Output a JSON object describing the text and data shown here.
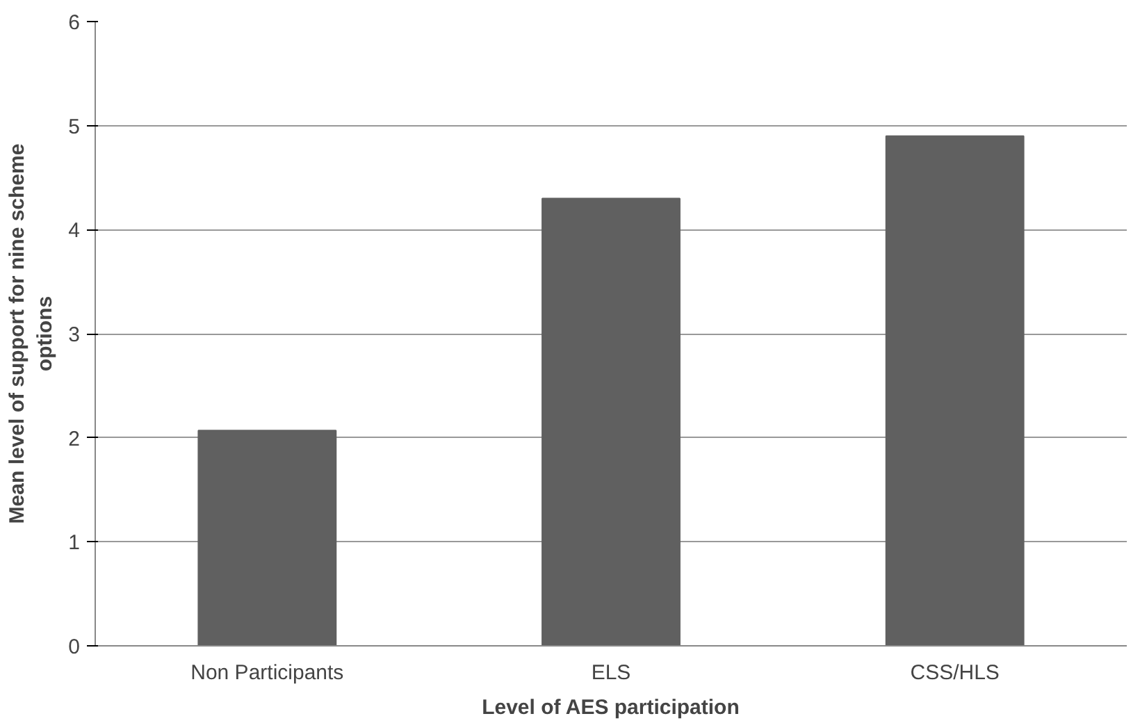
{
  "chart_data": {
    "type": "bar",
    "xlabel": "Level of AES participation",
    "ylabel": "Mean level of support for nine scheme options",
    "categories": [
      "Non Participants",
      "ELS",
      "CSS/HLS"
    ],
    "values": [
      2.07,
      4.3,
      4.9
    ],
    "color": "#606060",
    "ylim": [
      0,
      6
    ],
    "yticks": [
      0,
      1,
      2,
      3,
      4,
      5,
      6
    ],
    "grid": "y"
  }
}
